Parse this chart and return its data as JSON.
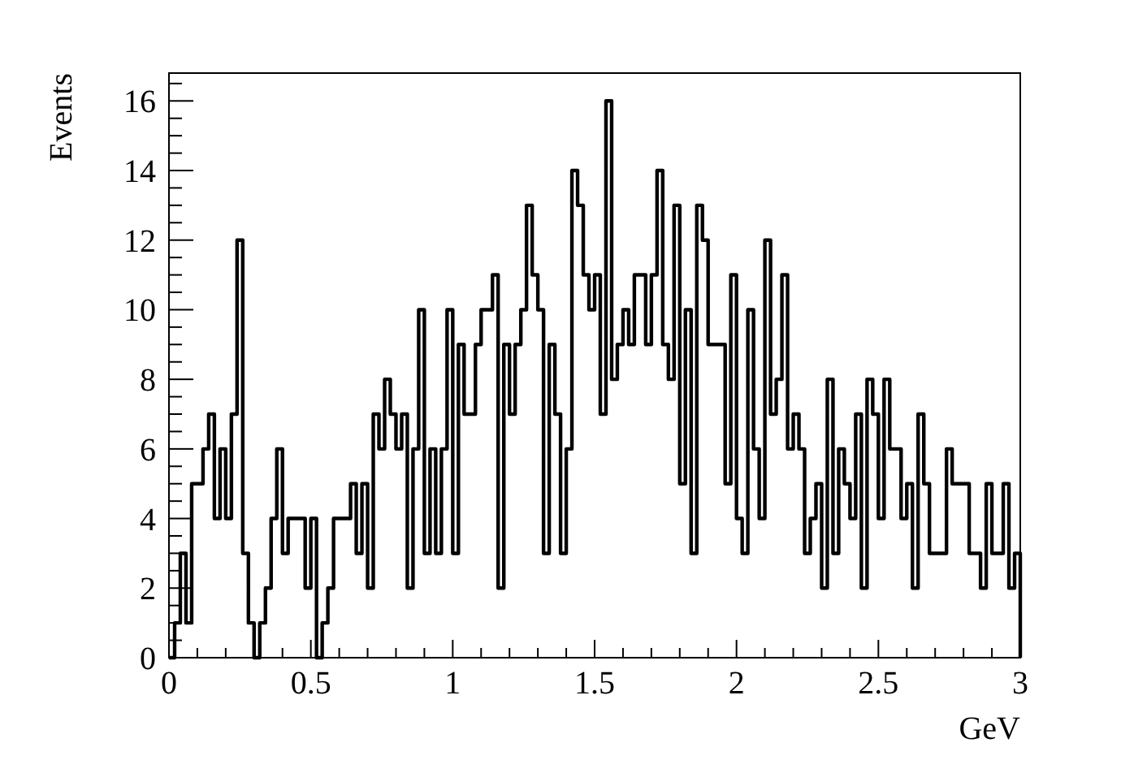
{
  "chart_data": {
    "type": "histogram",
    "xlabel": "GeV",
    "ylabel": "Events",
    "bins": [
      0,
      0.02,
      0.04,
      0.06,
      0.08,
      0.1,
      0.12,
      0.14,
      0.16,
      0.18,
      0.2,
      0.22,
      0.24,
      0.26,
      0.28,
      0.3,
      0.32,
      0.34,
      0.36,
      0.38,
      0.4,
      0.42,
      0.44,
      0.46,
      0.48,
      0.5,
      0.52,
      0.54,
      0.56,
      0.58,
      0.6,
      0.62,
      0.64,
      0.66,
      0.68,
      0.7,
      0.72,
      0.74,
      0.76,
      0.78,
      0.8,
      0.82,
      0.84,
      0.86,
      0.88,
      0.9,
      0.92,
      0.94,
      0.96,
      0.98,
      1,
      1.02,
      1.04,
      1.06,
      1.08,
      1.1,
      1.12,
      1.14,
      1.16,
      1.18,
      1.2,
      1.22,
      1.24,
      1.26,
      1.28,
      1.3,
      1.32,
      1.34,
      1.36,
      1.38,
      1.4,
      1.42,
      1.44,
      1.46,
      1.48,
      1.5,
      1.52,
      1.54,
      1.56,
      1.58,
      1.6,
      1.62,
      1.64,
      1.66,
      1.68,
      1.7,
      1.72,
      1.74,
      1.76,
      1.78,
      1.8,
      1.82,
      1.84,
      1.86,
      1.88,
      1.9,
      1.92,
      1.94,
      1.96,
      1.98,
      2,
      2.02,
      2.04,
      2.06,
      2.08,
      2.1,
      2.12,
      2.14,
      2.16,
      2.18,
      2.2,
      2.22,
      2.24,
      2.26,
      2.28,
      2.3,
      2.32,
      2.34,
      2.36,
      2.38,
      2.4,
      2.42,
      2.44,
      2.46,
      2.48,
      2.5,
      2.52,
      2.54,
      2.56,
      2.58,
      2.6,
      2.62,
      2.64,
      2.66,
      2.68,
      2.7,
      2.72,
      2.74,
      2.76,
      2.78,
      2.8,
      2.82,
      2.84,
      2.86,
      2.88,
      2.9,
      2.92,
      2.94,
      2.96,
      2.98,
      3
    ],
    "values": [
      0,
      1,
      3,
      1,
      5,
      5,
      6,
      7,
      4,
      6,
      4,
      7,
      12,
      3,
      1,
      0,
      1,
      2,
      4,
      6,
      3,
      4,
      4,
      4,
      2,
      4,
      0,
      1,
      2,
      4,
      4,
      4,
      5,
      3,
      5,
      2,
      7,
      6,
      8,
      7,
      6,
      7,
      2,
      6,
      10,
      3,
      6,
      3,
      6,
      10,
      3,
      9,
      7,
      7,
      9,
      10,
      10,
      11,
      2,
      9,
      7,
      9,
      10,
      13,
      11,
      10,
      3,
      9,
      7,
      3,
      6,
      14,
      13,
      11,
      10,
      11,
      7,
      16,
      8,
      9,
      10,
      9,
      11,
      11,
      9,
      11,
      14,
      9,
      8,
      13,
      5,
      10,
      3,
      13,
      12,
      9,
      9,
      9,
      5,
      11,
      4,
      3,
      10,
      6,
      4,
      12,
      7,
      8,
      11,
      6,
      7,
      6,
      3,
      4,
      5,
      2,
      8,
      3,
      6,
      5,
      4,
      7,
      2,
      8,
      7,
      4,
      8,
      6,
      6,
      4,
      5,
      2,
      7,
      5,
      3,
      3,
      3,
      6,
      5,
      5,
      5,
      3,
      3,
      2,
      5,
      3,
      3,
      5,
      2,
      3
    ],
    "color": "#000000",
    "xlim": [
      0,
      3
    ],
    "xticks": [
      0,
      {
        "value": 0.1,
        "label": null
      },
      {
        "value": 0.2,
        "label": null
      },
      {
        "value": 0.3,
        "label": null
      },
      {
        "value": 0.4,
        "label": null
      },
      0.5,
      {
        "value": 0.6,
        "label": null
      },
      {
        "value": 0.7,
        "label": null
      },
      {
        "value": 0.8,
        "label": null
      },
      {
        "value": 0.9,
        "label": null
      },
      1,
      {
        "value": 1.1,
        "label": null
      },
      {
        "value": 1.2,
        "label": null
      },
      {
        "value": 1.3,
        "label": null
      },
      {
        "value": 1.4,
        "label": null
      },
      1.5,
      {
        "value": 1.6,
        "label": null
      },
      {
        "value": 1.7,
        "label": null
      },
      {
        "value": 1.8,
        "label": null
      },
      {
        "value": 1.9,
        "label": null
      },
      2,
      {
        "value": 2.1,
        "label": null
      },
      {
        "value": 2.2,
        "label": null
      },
      {
        "value": 2.3,
        "label": null
      },
      {
        "value": 2.4,
        "label": null
      },
      2.5,
      {
        "value": 2.6,
        "label": null
      },
      {
        "value": 2.7,
        "label": null
      },
      {
        "value": 2.8,
        "label": null
      },
      {
        "value": 2.9,
        "label": null
      },
      3
    ],
    "ylim": [
      0,
      16.8
    ],
    "yticks": [
      0,
      {
        "value": 0.5,
        "label": null
      },
      {
        "value": 1,
        "label": null
      },
      {
        "value": 1.5,
        "label": null
      },
      2,
      {
        "value": 2.5,
        "label": null
      },
      {
        "value": 3,
        "label": null
      },
      {
        "value": 3.5,
        "label": null
      },
      4,
      {
        "value": 4.5,
        "label": null
      },
      {
        "value": 5,
        "label": null
      },
      {
        "value": 5.5,
        "label": null
      },
      6,
      {
        "value": 6.5,
        "label": null
      },
      {
        "value": 7,
        "label": null
      },
      {
        "value": 7.5,
        "label": null
      },
      8,
      {
        "value": 8.5,
        "label": null
      },
      {
        "value": 9,
        "label": null
      },
      {
        "value": 9.5,
        "label": null
      },
      10,
      {
        "value": 10.5,
        "label": null
      },
      {
        "value": 11,
        "label": null
      },
      {
        "value": 11.5,
        "label": null
      },
      12,
      {
        "value": 12.5,
        "label": null
      },
      {
        "value": 13,
        "label": null
      },
      {
        "value": 13.5,
        "label": null
      },
      14,
      {
        "value": 14.5,
        "label": null
      },
      {
        "value": 15,
        "label": null
      },
      {
        "value": 15.5,
        "label": null
      },
      16,
      {
        "value": 16.5,
        "label": null
      }
    ]
  }
}
